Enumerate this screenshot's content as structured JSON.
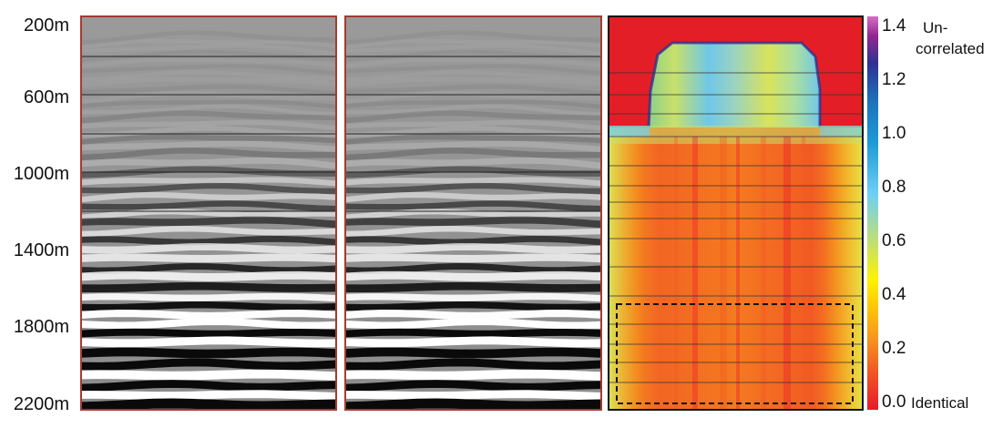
{
  "chart_data": {
    "type": "heatmap",
    "title": "",
    "depth_axis": {
      "ticks": [
        "200m",
        "600m",
        "1000m",
        "1400m",
        "1800m",
        "2200m"
      ],
      "values": [
        200,
        600,
        1000,
        1400,
        1800,
        2200
      ],
      "range": [
        200,
        2200
      ]
    },
    "panels": [
      {
        "kind": "seismic-section"
      },
      {
        "kind": "seismic-section"
      },
      {
        "kind": "difference-map",
        "highlight_box": "lower-region dashed rectangle"
      }
    ],
    "colorbar": {
      "ticks": [
        "0.0",
        "0.2",
        "0.4",
        "0.6",
        "0.8",
        "1.0",
        "1.2",
        "1.4"
      ],
      "values": [
        0.0,
        0.2,
        0.4,
        0.6,
        0.8,
        1.0,
        1.2,
        1.4
      ],
      "range": [
        0.0,
        1.4
      ],
      "top_label": [
        "Un-",
        "correlated"
      ],
      "bottom_label": "Identical",
      "colors": [
        "#e8192c",
        "#f15a22",
        "#f7941d",
        "#ffcb05",
        "#fff200",
        "#c5e06b",
        "#6dcff6",
        "#1c75bc",
        "#2e3192",
        "#92278f",
        "#d36fc6"
      ]
    },
    "colors": {
      "panel_border_seismic": "#a33b32",
      "panel_border_map": "#111111",
      "red_region": "#e41e26",
      "background": "#ffffff"
    }
  }
}
